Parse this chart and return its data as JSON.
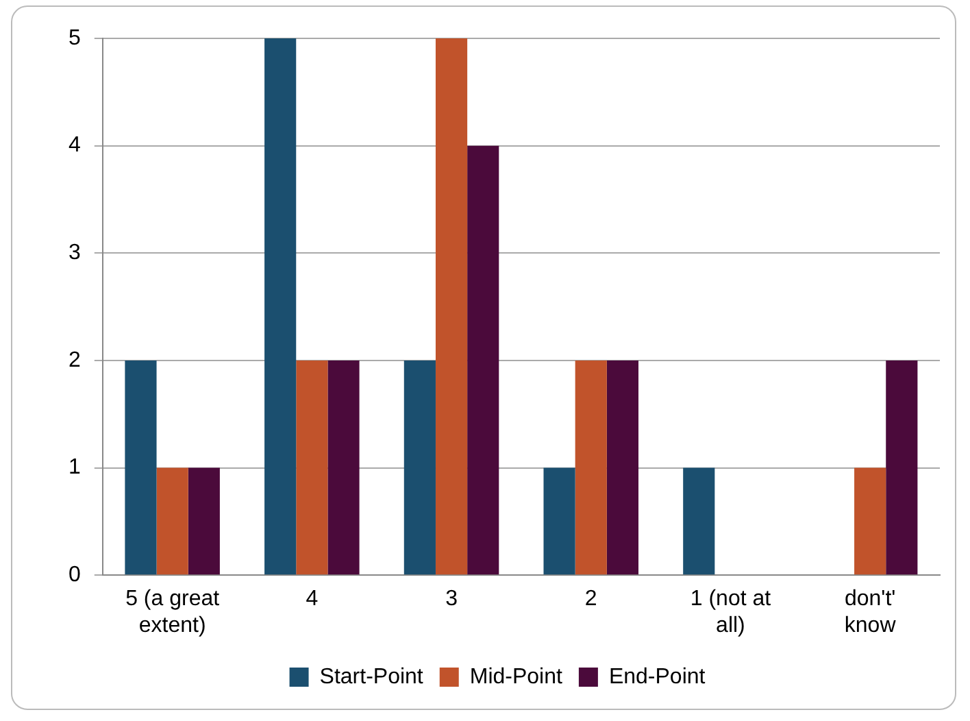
{
  "chart_data": {
    "type": "bar",
    "categories": [
      "5 (a great extent)",
      "4",
      "3",
      "2",
      "1 (not at all)",
      "don't' know"
    ],
    "series": [
      {
        "name": "Start-Point",
        "color": "#1b4f6f",
        "values": [
          2,
          5,
          2,
          1,
          1,
          0
        ]
      },
      {
        "name": "Mid-Point",
        "color": "#c1532b",
        "values": [
          1,
          2,
          5,
          2,
          0,
          1
        ]
      },
      {
        "name": "End-Point",
        "color": "#4b0a3b",
        "values": [
          1,
          2,
          4,
          2,
          0,
          2
        ]
      }
    ],
    "ylim": [
      0,
      5
    ],
    "yticks": [
      0,
      1,
      2,
      3,
      4,
      5
    ],
    "grid": "y",
    "legend": "bottom"
  }
}
